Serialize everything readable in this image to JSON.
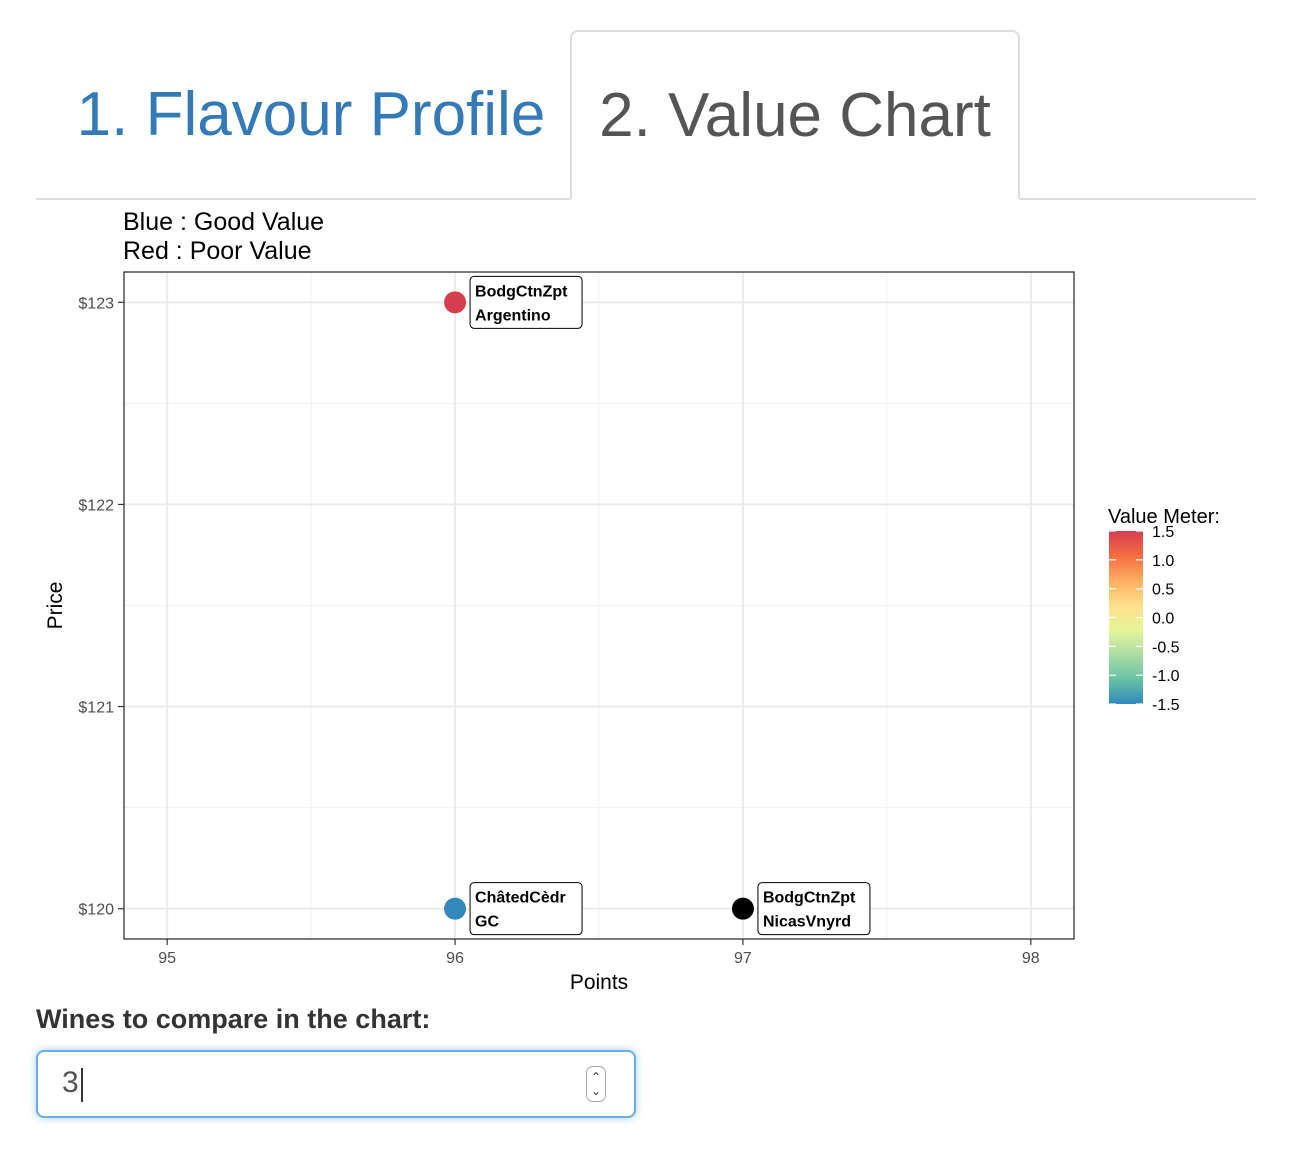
{
  "tabs": [
    {
      "label": "1. Flavour Profile",
      "active": false
    },
    {
      "label": "2. Value Chart",
      "active": true
    }
  ],
  "chart_data": {
    "type": "scatter",
    "title_lines": [
      "Blue : Good Value",
      "Red : Poor Value"
    ],
    "xlabel": "Points",
    "ylabel": "Price",
    "xlim": [
      94.85,
      98.15
    ],
    "ylim": [
      119.85,
      123.15
    ],
    "x_ticks": [
      95,
      96,
      97,
      98
    ],
    "x_tick_labels": [
      "95",
      "96",
      "97",
      "98"
    ],
    "y_ticks": [
      120,
      121,
      122,
      123
    ],
    "y_tick_labels": [
      "$120",
      "$121",
      "$122",
      "$123"
    ],
    "grid": true,
    "points": [
      {
        "x": 96,
        "y": 123,
        "label_lines": [
          "BodgCtnZpt",
          "Argentino"
        ],
        "color": "#d53e4f"
      },
      {
        "x": 96,
        "y": 120,
        "label_lines": [
          "ChâtedCèdr",
          "GC"
        ],
        "color": "#3288bd"
      },
      {
        "x": 97,
        "y": 120,
        "label_lines": [
          "BodgCtnZpt",
          "NicasVnyrd"
        ],
        "color": "#000000"
      }
    ],
    "legend": {
      "title": "Value Meter:",
      "position": "right",
      "min": -1.5,
      "max": 1.5,
      "breaks": [
        "1.5",
        "1.0",
        "0.5",
        "0.0",
        "-0.5",
        "-1.0",
        "-1.5"
      ],
      "break_values": [
        1.5,
        1.0,
        0.5,
        0.0,
        -0.5,
        -1.0,
        -1.5
      ],
      "colors": [
        "#d53e4f",
        "#f46d43",
        "#fdae61",
        "#fee08b",
        "#e6f598",
        "#abdda4",
        "#66c2a5",
        "#3288bd"
      ]
    }
  },
  "control": {
    "label": "Wines to compare in the chart:",
    "value": "3"
  }
}
